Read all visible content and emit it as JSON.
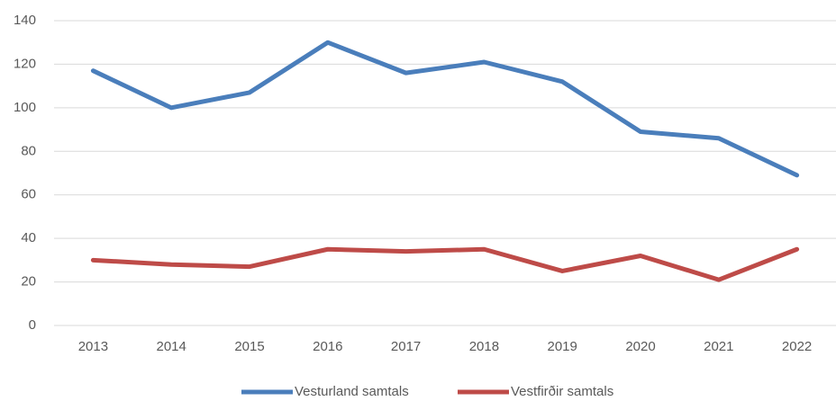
{
  "chart_data": {
    "type": "line",
    "categories": [
      "2013",
      "2014",
      "2015",
      "2016",
      "2017",
      "2018",
      "2019",
      "2020",
      "2021",
      "2022"
    ],
    "series": [
      {
        "name": "Vesturland samtals",
        "color": "#4a7ebb",
        "values": [
          117,
          100,
          107,
          130,
          116,
          121,
          112,
          89,
          86,
          69
        ]
      },
      {
        "name": "Vestfirðir samtals",
        "color": "#be4b48",
        "values": [
          30,
          28,
          27,
          35,
          34,
          35,
          25,
          32,
          21,
          35
        ]
      }
    ],
    "ylim": [
      0,
      140
    ],
    "yticks": [
      0,
      20,
      40,
      60,
      80,
      100,
      120,
      140
    ],
    "grid": true,
    "legend": "bottom"
  }
}
